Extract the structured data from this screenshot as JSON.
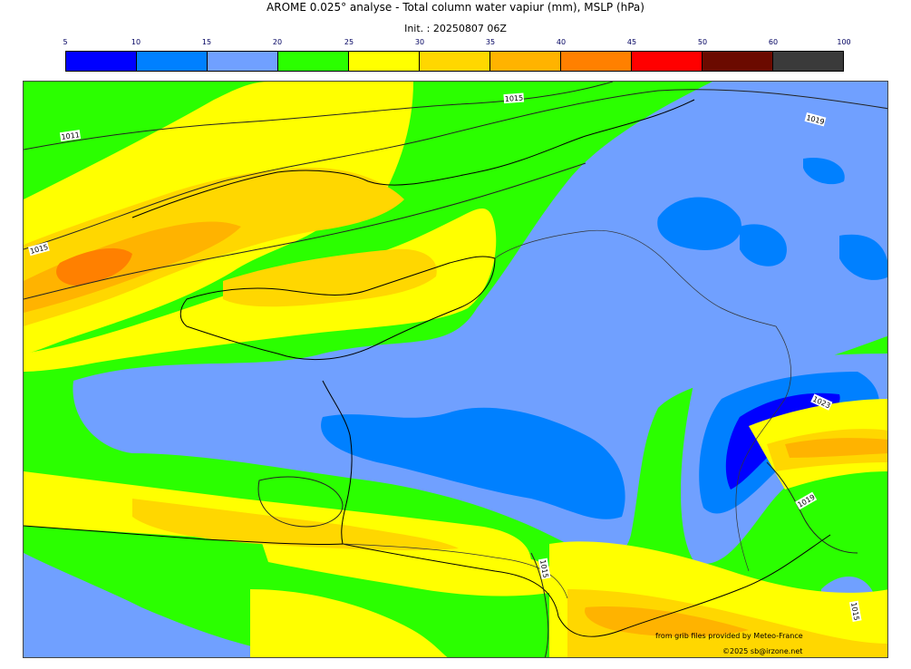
{
  "header": {
    "title": "AROME 0.025° analyse - Total column water vapiur (mm), MSLP (hPa)",
    "init": "Init. : 20250807 06Z"
  },
  "legend": {
    "ticks": [
      "5",
      "10",
      "15",
      "20",
      "25",
      "30",
      "35",
      "40",
      "45",
      "50",
      "60",
      "100"
    ],
    "colors": [
      "#0000ff",
      "#0080ff",
      "#70a0ff",
      "#2bff00",
      "#ffff00",
      "#ffd700",
      "#ffb300",
      "#ff8000",
      "#ff0000",
      "#6b0a00",
      "#3a3a3a"
    ]
  },
  "isobars": {
    "labels": [
      "1011",
      "1015",
      "1015",
      "1019",
      "1023",
      "1019",
      "1015",
      "1015"
    ]
  },
  "footer": {
    "credit1": "from grib files provided by  Meteo-France",
    "credit2": "©2025 sb@irzone.net"
  }
}
